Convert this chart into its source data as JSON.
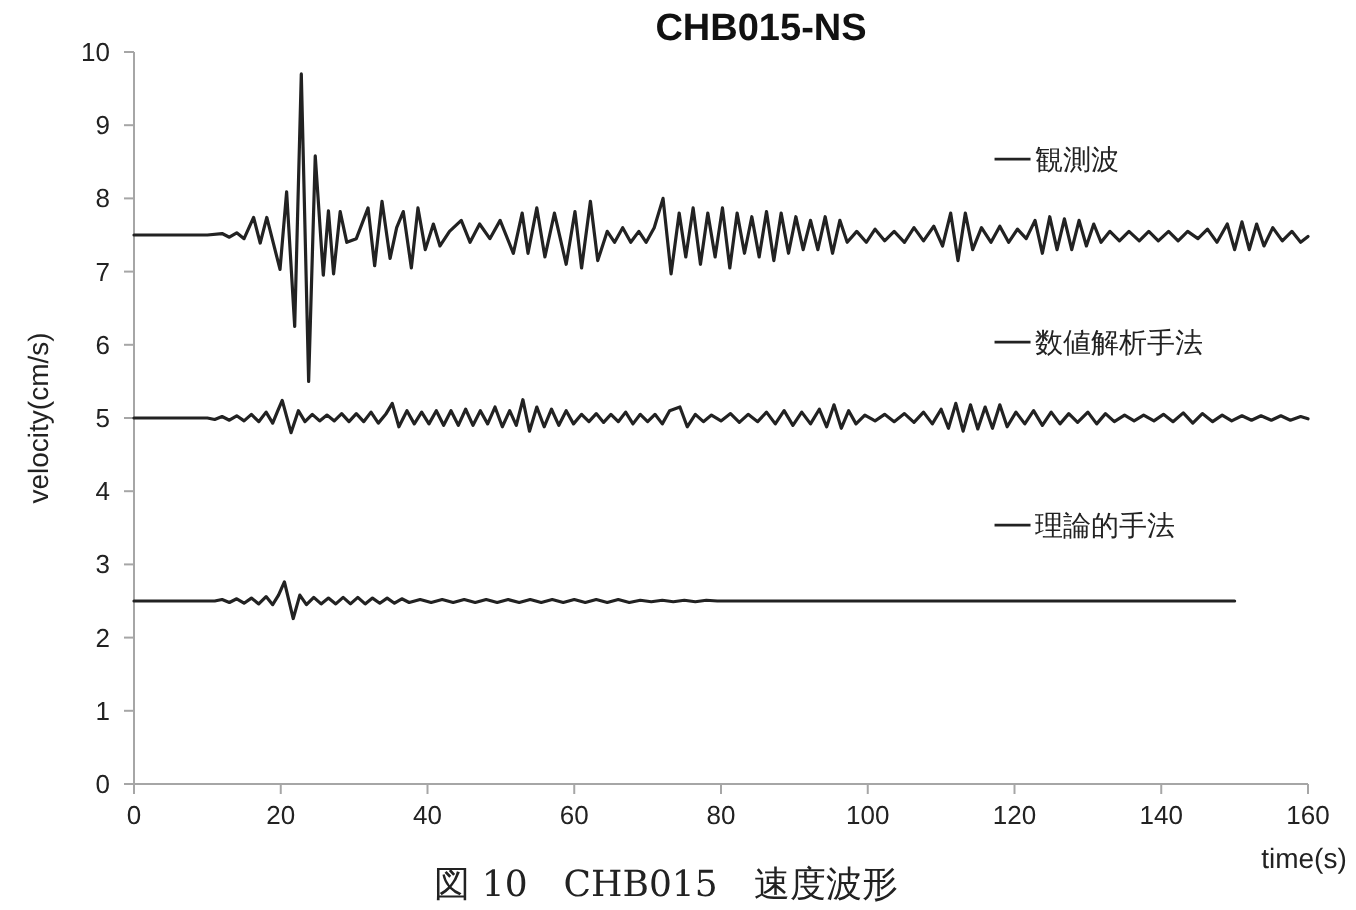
{
  "chart_data": {
    "type": "line",
    "title": "CHB015-NS",
    "xlabel": "time(s)",
    "ylabel": "velocity(cm/s)",
    "annotations": [
      "図 10　CHB015　速度波形"
    ],
    "legend": "right",
    "xlim": [
      0,
      160
    ],
    "ylim": [
      0,
      10
    ],
    "xticks": [
      0,
      20,
      40,
      60,
      80,
      100,
      120,
      140,
      160
    ],
    "yticks": [
      0,
      1,
      2,
      3,
      4,
      5,
      6,
      7,
      8,
      9,
      10
    ],
    "series": [
      {
        "name": "観測波",
        "color": "#222222",
        "x": [
          0,
          10,
          12,
          13,
          14,
          15,
          16.3,
          17.2,
          18.1,
          19.9,
          20.8,
          21.9,
          22.8,
          23.8,
          24.7,
          25.8,
          26.5,
          27.2,
          28.1,
          29.0,
          30.3,
          31.9,
          32.8,
          33.8,
          34.9,
          35.8,
          36.7,
          37.8,
          38.7,
          39.7,
          40.8,
          41.7,
          43.0,
          44.6,
          45.8,
          47.1,
          48.5,
          49.9,
          51.7,
          52.9,
          53.7,
          54.9,
          56.0,
          57.3,
          58.9,
          60.1,
          61.0,
          62.2,
          63.2,
          64.5,
          65.5,
          66.6,
          67.7,
          68.8,
          69.8,
          70.9,
          72.1,
          73.2,
          74.3,
          75.2,
          76.2,
          77.2,
          78.2,
          79.2,
          80.2,
          81.2,
          82.2,
          83.2,
          84.2,
          85.2,
          86.2,
          87.2,
          88.2,
          89.2,
          90.2,
          91.2,
          92.2,
          93.2,
          94.2,
          95.2,
          96.2,
          97.2,
          98.5,
          99.8,
          101,
          102.3,
          103.6,
          105,
          106.3,
          107.6,
          109,
          110.2,
          111.3,
          112.3,
          113.3,
          114.3,
          115.5,
          116.8,
          118,
          119.2,
          120.4,
          121.6,
          122.8,
          123.8,
          124.8,
          125.8,
          126.8,
          127.8,
          128.8,
          129.8,
          130.8,
          131.8,
          133,
          134.3,
          135.6,
          137,
          138.3,
          139.6,
          141,
          142.3,
          143.6,
          145,
          146.3,
          147.6,
          149,
          150,
          151,
          152,
          153,
          154,
          155.2,
          156.5,
          157.8,
          159,
          160
        ],
        "values": [
          7.5,
          7.5,
          7.52,
          7.47,
          7.53,
          7.45,
          7.74,
          7.39,
          7.74,
          7.03,
          8.09,
          6.25,
          9.7,
          5.5,
          8.58,
          6.95,
          7.83,
          6.97,
          7.82,
          7.4,
          7.45,
          7.87,
          7.08,
          7.96,
          7.18,
          7.6,
          7.82,
          7.05,
          7.87,
          7.3,
          7.65,
          7.35,
          7.55,
          7.7,
          7.4,
          7.65,
          7.45,
          7.7,
          7.25,
          7.8,
          7.25,
          7.87,
          7.2,
          7.8,
          7.1,
          7.82,
          7.05,
          7.96,
          7.15,
          7.55,
          7.4,
          7.6,
          7.4,
          7.55,
          7.4,
          7.6,
          8.0,
          6.97,
          7.8,
          7.2,
          7.87,
          7.1,
          7.8,
          7.2,
          7.87,
          7.05,
          7.8,
          7.25,
          7.75,
          7.2,
          7.82,
          7.15,
          7.8,
          7.25,
          7.75,
          7.3,
          7.7,
          7.3,
          7.75,
          7.25,
          7.7,
          7.4,
          7.55,
          7.4,
          7.58,
          7.42,
          7.55,
          7.4,
          7.6,
          7.42,
          7.62,
          7.35,
          7.8,
          7.15,
          7.8,
          7.3,
          7.6,
          7.4,
          7.62,
          7.4,
          7.58,
          7.45,
          7.7,
          7.25,
          7.75,
          7.3,
          7.72,
          7.3,
          7.7,
          7.35,
          7.65,
          7.4,
          7.55,
          7.42,
          7.55,
          7.42,
          7.55,
          7.42,
          7.55,
          7.42,
          7.55,
          7.45,
          7.58,
          7.4,
          7.65,
          7.3,
          7.68,
          7.3,
          7.65,
          7.35,
          7.6,
          7.42,
          7.55,
          7.4,
          7.48
        ]
      },
      {
        "name": "数値解析手法",
        "color": "#222222",
        "x": [
          0,
          10,
          11,
          12,
          13,
          14,
          15,
          16,
          17,
          18,
          18.9,
          19.6,
          20.2,
          21.4,
          22.4,
          23.3,
          24.3,
          25.3,
          26.3,
          27.3,
          28.3,
          29.3,
          30.3,
          31.3,
          32.3,
          33.3,
          34.3,
          35.2,
          36.1,
          37.2,
          38.2,
          39.2,
          40.2,
          41.2,
          42.2,
          43.2,
          44.2,
          45.2,
          46.2,
          47.2,
          48.2,
          49.2,
          50.2,
          51.2,
          52.1,
          53.0,
          53.9,
          54.9,
          55.9,
          56.9,
          57.9,
          58.9,
          59.9,
          61,
          62,
          63,
          64,
          65,
          66,
          67,
          68,
          69,
          70,
          71,
          72,
          73,
          74.4,
          75.4,
          76.5,
          77.6,
          78.7,
          80,
          81.3,
          82.5,
          83.7,
          85,
          86.2,
          87.4,
          88.6,
          89.8,
          91,
          92.2,
          93.4,
          94.4,
          95.4,
          96.4,
          97.4,
          98.4,
          99.6,
          101,
          102.3,
          103.6,
          105,
          106.3,
          107.6,
          108.8,
          110,
          111,
          112,
          113,
          114,
          115,
          116,
          117,
          118,
          119,
          120.2,
          121.4,
          122.6,
          123.8,
          125,
          126.2,
          127.4,
          128.6,
          130,
          131.2,
          132.4,
          133.6,
          135,
          136.3,
          137.6,
          139,
          140.3,
          141.6,
          143,
          144.3,
          145.6,
          147,
          148.3,
          149.6,
          151,
          152.3,
          153.6,
          155,
          156.3,
          157.6,
          159,
          160
        ],
        "values": [
          5,
          5,
          4.98,
          5.02,
          4.97,
          5.03,
          4.96,
          5.05,
          4.95,
          5.08,
          4.93,
          5.1,
          5.24,
          4.8,
          5.1,
          4.95,
          5.05,
          4.96,
          5.04,
          4.96,
          5.06,
          4.95,
          5.06,
          4.95,
          5.08,
          4.93,
          5.05,
          5.2,
          4.88,
          5.1,
          4.92,
          5.08,
          4.92,
          5.1,
          4.9,
          5.1,
          4.9,
          5.12,
          4.9,
          5.1,
          4.92,
          5.15,
          4.88,
          5.1,
          4.9,
          5.25,
          4.82,
          5.15,
          4.88,
          5.12,
          4.9,
          5.1,
          4.92,
          5.05,
          4.95,
          5.06,
          4.94,
          5.05,
          4.95,
          5.08,
          4.92,
          5.05,
          4.95,
          5.05,
          4.92,
          5.1,
          5.15,
          4.88,
          5.05,
          4.95,
          5.04,
          4.96,
          5.06,
          4.94,
          5.05,
          4.95,
          5.08,
          4.92,
          5.1,
          4.9,
          5.08,
          4.92,
          5.12,
          4.88,
          5.18,
          4.86,
          5.1,
          4.92,
          5.04,
          4.96,
          5.05,
          4.95,
          5.06,
          4.94,
          5.08,
          4.92,
          5.12,
          4.86,
          5.2,
          4.82,
          5.18,
          4.85,
          5.15,
          4.86,
          5.18,
          4.88,
          5.08,
          4.92,
          5.1,
          4.9,
          5.08,
          4.92,
          5.06,
          4.94,
          5.08,
          4.92,
          5.06,
          4.95,
          5.04,
          4.96,
          5.04,
          4.96,
          5.05,
          4.95,
          5.07,
          4.93,
          5.06,
          4.95,
          5.04,
          4.96,
          5.03,
          4.97,
          5.03,
          4.97,
          5.03,
          4.97,
          5.02,
          4.99
        ]
      },
      {
        "name": "理論的手法",
        "color": "#222222",
        "x": [
          0,
          11,
          12,
          13,
          14,
          15,
          16,
          17,
          18,
          18.9,
          19.7,
          20.5,
          21.7,
          22.6,
          23.5,
          24.5,
          25.5,
          26.5,
          27.5,
          28.5,
          29.5,
          30.5,
          31.5,
          32.5,
          33.5,
          34.5,
          35.5,
          36.5,
          37.5,
          39,
          40.5,
          42,
          43.5,
          45,
          46.5,
          48,
          49.5,
          51,
          52.5,
          54,
          55.5,
          57,
          58.5,
          60,
          61.5,
          63,
          64.5,
          66,
          67.5,
          69,
          70.5,
          72,
          73.5,
          75,
          76.5,
          78,
          79.5,
          150
        ],
        "values": [
          2.5,
          2.5,
          2.52,
          2.48,
          2.53,
          2.47,
          2.54,
          2.46,
          2.56,
          2.45,
          2.58,
          2.76,
          2.26,
          2.58,
          2.45,
          2.55,
          2.46,
          2.54,
          2.46,
          2.55,
          2.46,
          2.55,
          2.46,
          2.54,
          2.47,
          2.54,
          2.47,
          2.53,
          2.48,
          2.52,
          2.48,
          2.52,
          2.48,
          2.52,
          2.48,
          2.52,
          2.48,
          2.52,
          2.48,
          2.52,
          2.48,
          2.52,
          2.48,
          2.52,
          2.48,
          2.52,
          2.48,
          2.52,
          2.48,
          2.51,
          2.49,
          2.51,
          2.49,
          2.51,
          2.49,
          2.51,
          2.5,
          2.5
        ]
      }
    ]
  }
}
